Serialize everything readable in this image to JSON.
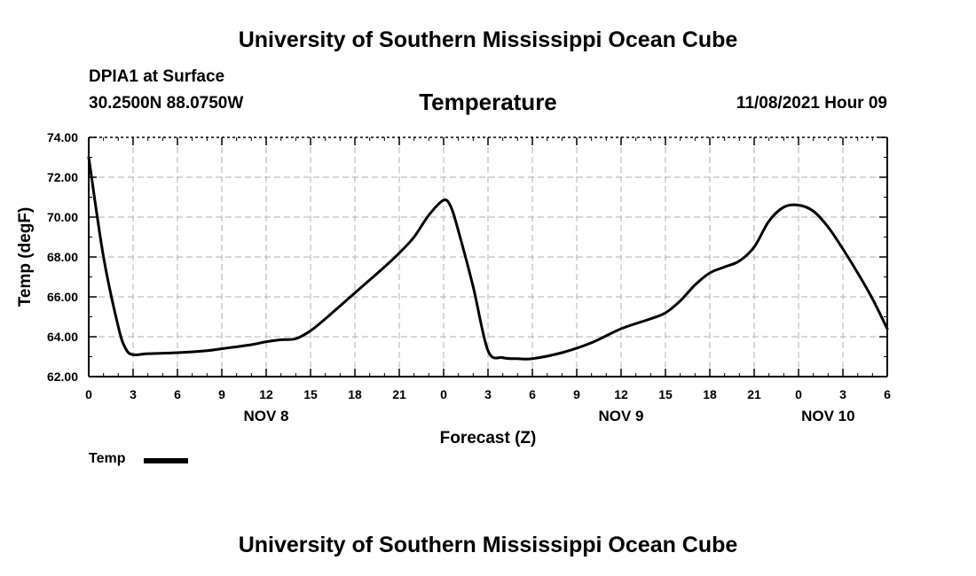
{
  "header": {
    "title": "University of Southern Mississippi Ocean Cube",
    "station": "DPIA1 at Surface",
    "coords": "30.2500N  88.0750W",
    "chart_title": "Temperature",
    "datetime": "11/08/2021 Hour 09"
  },
  "footer": {
    "title": "University of Southern Mississippi Ocean Cube"
  },
  "legend": {
    "label": "Temp"
  },
  "colors": {
    "line": "#000000",
    "grid": "#b0b0b0"
  },
  "chart_data": {
    "type": "line",
    "title": "Temperature",
    "xlabel": "Forecast (Z)",
    "ylabel": "Temp (degF)",
    "ylim": [
      62.0,
      74.0
    ],
    "yticks": [
      "62.00",
      "64.00",
      "66.00",
      "68.00",
      "70.00",
      "72.00",
      "74.00"
    ],
    "xlim": [
      0,
      54
    ],
    "xticks": [
      {
        "x": 0,
        "label": "0"
      },
      {
        "x": 3,
        "label": "3"
      },
      {
        "x": 6,
        "label": "6"
      },
      {
        "x": 9,
        "label": "9"
      },
      {
        "x": 12,
        "label": "12"
      },
      {
        "x": 15,
        "label": "15"
      },
      {
        "x": 18,
        "label": "18"
      },
      {
        "x": 21,
        "label": "21"
      },
      {
        "x": 24,
        "label": "0"
      },
      {
        "x": 27,
        "label": "3"
      },
      {
        "x": 30,
        "label": "6"
      },
      {
        "x": 33,
        "label": "9"
      },
      {
        "x": 36,
        "label": "12"
      },
      {
        "x": 39,
        "label": "15"
      },
      {
        "x": 42,
        "label": "18"
      },
      {
        "x": 45,
        "label": "21"
      },
      {
        "x": 48,
        "label": "0"
      },
      {
        "x": 51,
        "label": "3"
      },
      {
        "x": 54,
        "label": "6"
      }
    ],
    "day_labels": [
      {
        "x": 12,
        "label": "NOV 8"
      },
      {
        "x": 36,
        "label": "NOV 9"
      },
      {
        "x": 50,
        "label": "NOV 10"
      }
    ],
    "grid": true,
    "series": [
      {
        "name": "Temp",
        "x": [
          0,
          1,
          2,
          2.5,
          3,
          4,
          6,
          8,
          9,
          11,
          12,
          13,
          14,
          15,
          16,
          18,
          20,
          21,
          22,
          23,
          24,
          24.5,
          25,
          26,
          27,
          28,
          29,
          30,
          32,
          34,
          36,
          38,
          39,
          40,
          41,
          42,
          43,
          44,
          45,
          46,
          47,
          48,
          49,
          50,
          51,
          52,
          53,
          54
        ],
        "values": [
          73.0,
          68.0,
          64.5,
          63.4,
          63.1,
          63.15,
          63.2,
          63.3,
          63.4,
          63.6,
          63.75,
          63.85,
          63.9,
          64.3,
          64.9,
          66.2,
          67.5,
          68.2,
          69.0,
          70.1,
          70.85,
          70.5,
          69.3,
          66.5,
          63.3,
          62.95,
          62.9,
          62.9,
          63.2,
          63.7,
          64.4,
          64.9,
          65.2,
          65.8,
          66.6,
          67.2,
          67.5,
          67.8,
          68.5,
          69.8,
          70.5,
          70.6,
          70.3,
          69.5,
          68.4,
          67.2,
          65.9,
          64.4
        ]
      }
    ]
  }
}
